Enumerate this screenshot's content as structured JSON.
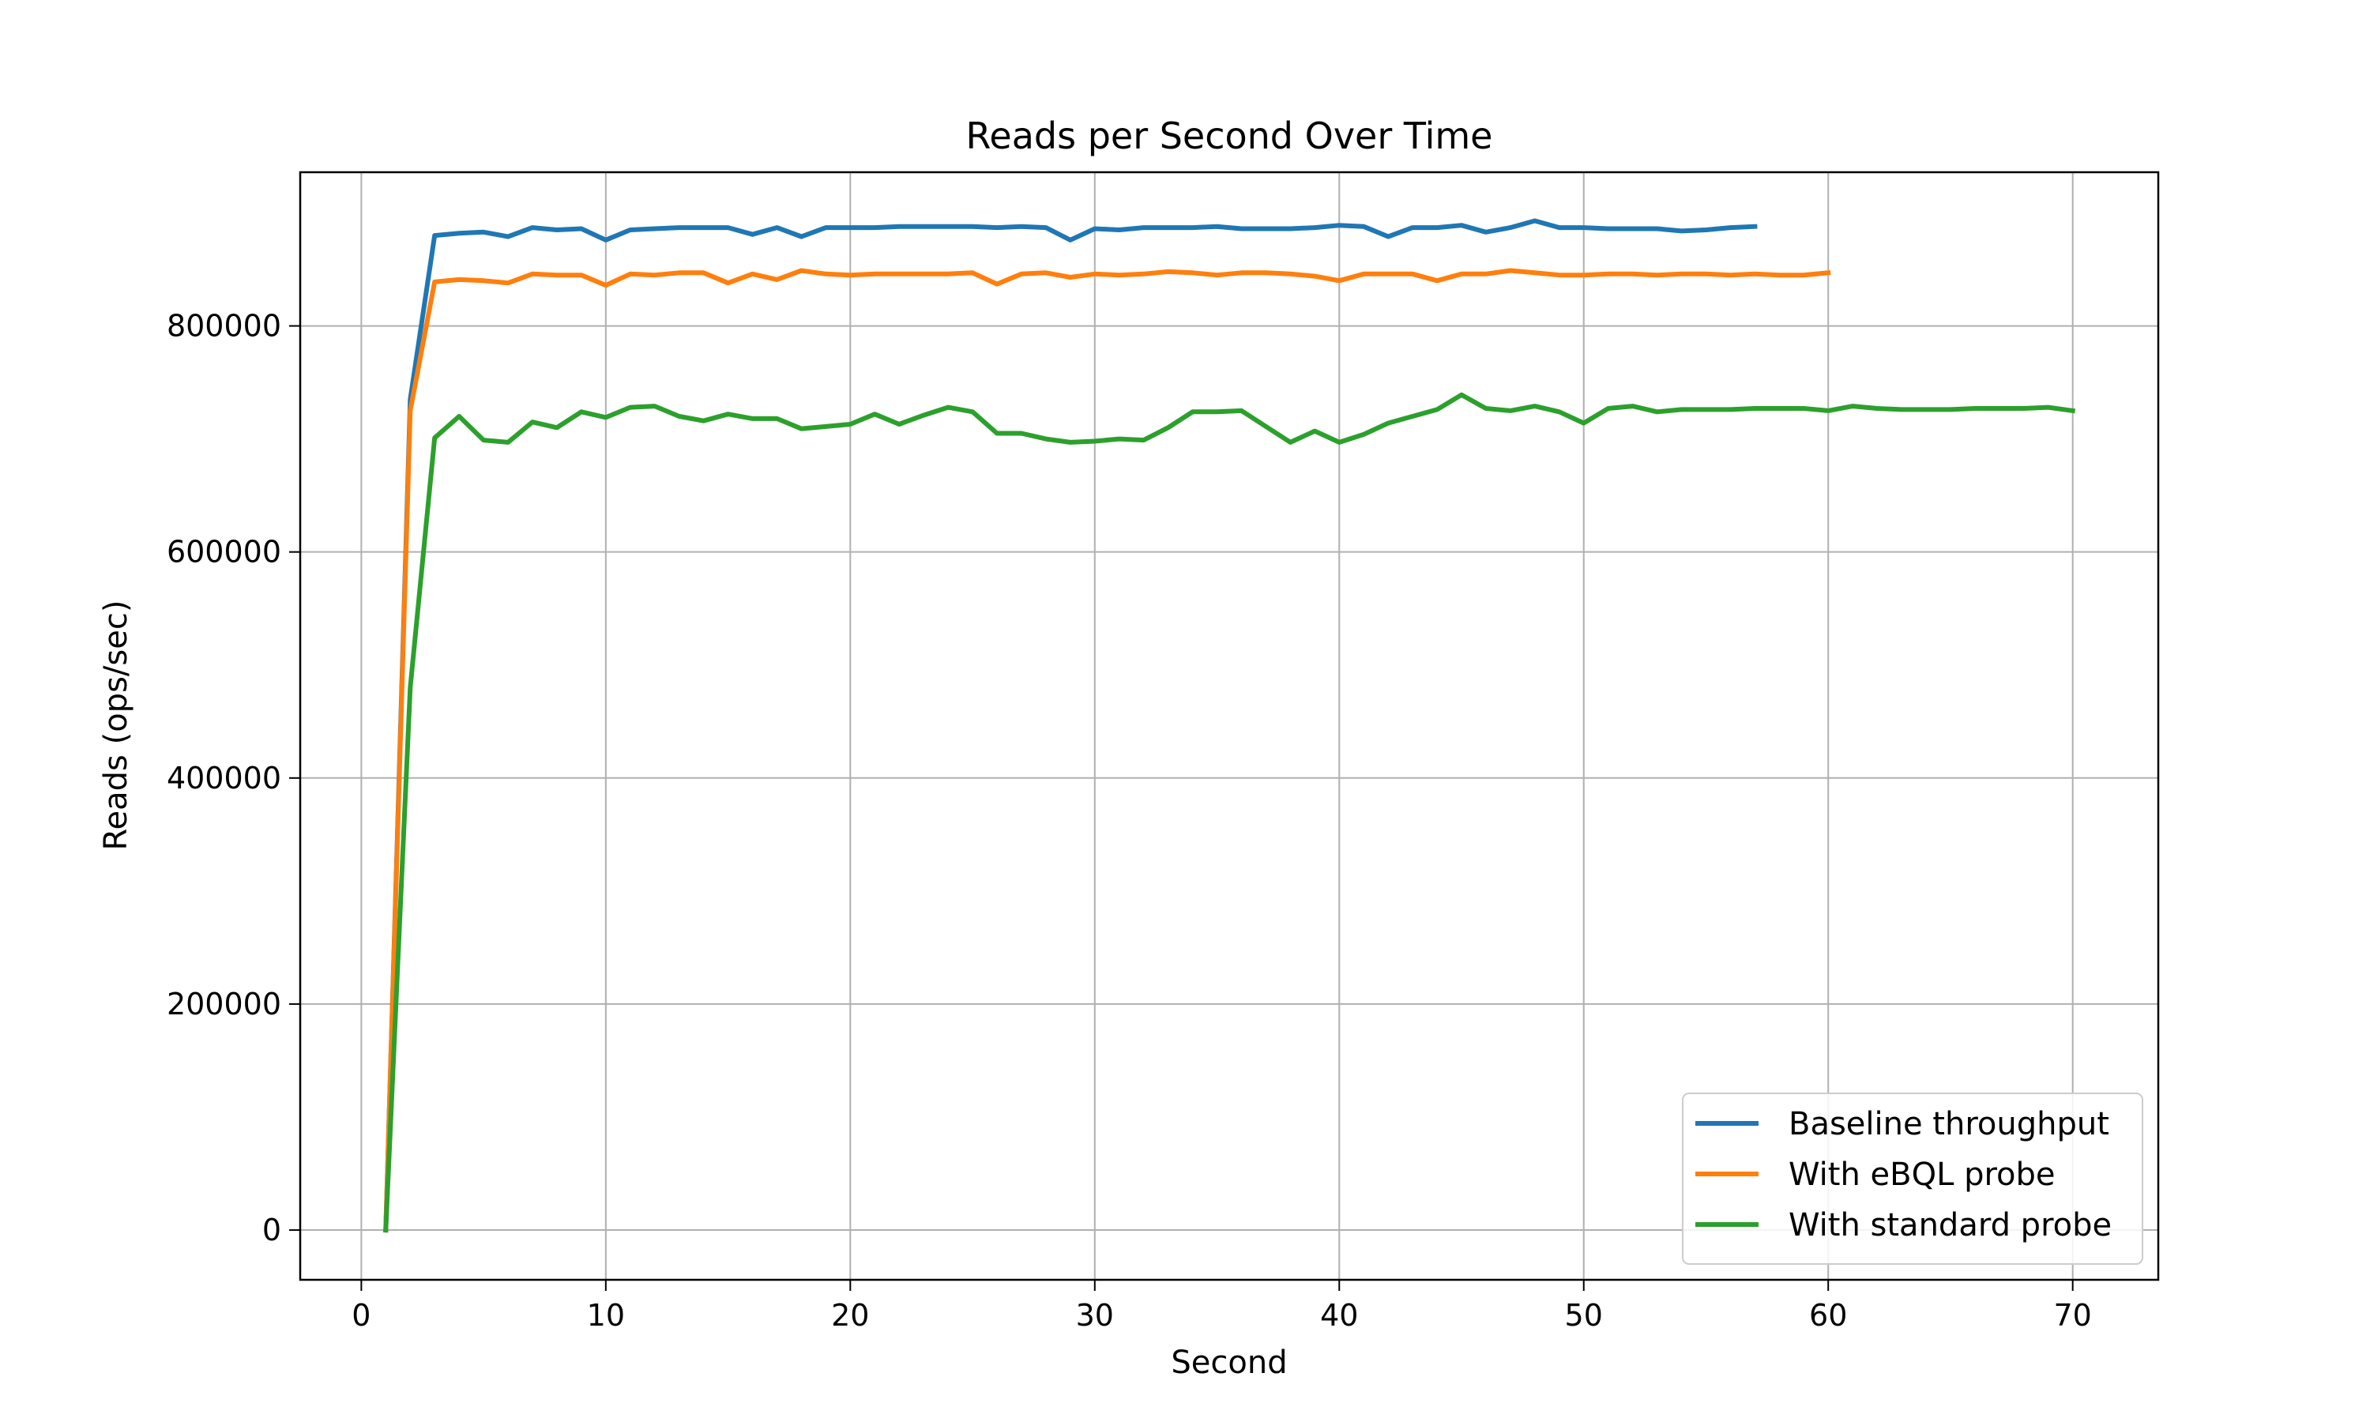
{
  "chart_data": {
    "type": "line",
    "title": "Reads per Second Over Time",
    "xlabel": "Second",
    "ylabel": "Reads (ops/sec)",
    "xlim": [
      -2.5,
      73.5
    ],
    "ylim": [
      -44000,
      936000
    ],
    "xticks": [
      0,
      10,
      20,
      30,
      40,
      50,
      60,
      70
    ],
    "yticks": [
      0,
      200000,
      400000,
      600000,
      800000
    ],
    "grid": true,
    "legend_position": "lower-right",
    "series": [
      {
        "name": "Baseline throughput",
        "color": "#1f77b4",
        "x": [
          1,
          2,
          3,
          4,
          5,
          6,
          7,
          8,
          9,
          10,
          11,
          12,
          13,
          14,
          15,
          16,
          17,
          18,
          19,
          20,
          21,
          22,
          23,
          24,
          25,
          26,
          27,
          28,
          29,
          30,
          31,
          32,
          33,
          34,
          35,
          36,
          37,
          38,
          39,
          40,
          41,
          42,
          43,
          44,
          45,
          46,
          47,
          48,
          49,
          50,
          51,
          52,
          53,
          54,
          55,
          56,
          57
        ],
        "y": [
          0,
          735000,
          880000,
          882000,
          883000,
          879000,
          887000,
          885000,
          886000,
          876000,
          885000,
          886000,
          887000,
          887000,
          887000,
          881000,
          887000,
          879000,
          887000,
          887000,
          887000,
          888000,
          888000,
          888000,
          888000,
          887000,
          888000,
          887000,
          876000,
          886000,
          885000,
          887000,
          887000,
          887000,
          888000,
          886000,
          886000,
          886000,
          887000,
          889000,
          888000,
          879000,
          887000,
          887000,
          889000,
          883000,
          887000,
          893000,
          887000,
          887000,
          886000,
          886000,
          886000,
          884000,
          885000,
          887000,
          888000
        ]
      },
      {
        "name": "With eBQL probe",
        "color": "#ff7f0e",
        "x": [
          1,
          2,
          3,
          4,
          5,
          6,
          7,
          8,
          9,
          10,
          11,
          12,
          13,
          14,
          15,
          16,
          17,
          18,
          19,
          20,
          21,
          22,
          23,
          24,
          25,
          26,
          27,
          28,
          29,
          30,
          31,
          32,
          33,
          34,
          35,
          36,
          37,
          38,
          39,
          40,
          41,
          42,
          43,
          44,
          45,
          46,
          47,
          48,
          49,
          50,
          51,
          52,
          53,
          54,
          55,
          56,
          57,
          58,
          59,
          60
        ],
        "y": [
          0,
          725000,
          839000,
          841000,
          840000,
          838000,
          846000,
          845000,
          845000,
          836000,
          846000,
          845000,
          847000,
          847000,
          838000,
          846000,
          841000,
          849000,
          846000,
          845000,
          846000,
          846000,
          846000,
          846000,
          847000,
          837000,
          846000,
          847000,
          843000,
          846000,
          845000,
          846000,
          848000,
          847000,
          845000,
          847000,
          847000,
          846000,
          844000,
          840000,
          846000,
          846000,
          846000,
          840000,
          846000,
          846000,
          849000,
          847000,
          845000,
          845000,
          846000,
          846000,
          845000,
          846000,
          846000,
          845000,
          846000,
          845000,
          845000,
          847000
        ]
      },
      {
        "name": "With standard probe",
        "color": "#2ca02c",
        "x": [
          1,
          2,
          3,
          4,
          5,
          6,
          7,
          8,
          9,
          10,
          11,
          12,
          13,
          14,
          15,
          16,
          17,
          18,
          19,
          20,
          21,
          22,
          23,
          24,
          25,
          26,
          27,
          28,
          29,
          30,
          31,
          32,
          33,
          34,
          35,
          36,
          37,
          38,
          39,
          40,
          41,
          42,
          43,
          44,
          45,
          46,
          47,
          48,
          49,
          50,
          51,
          52,
          53,
          54,
          55,
          56,
          57,
          58,
          59,
          60,
          61,
          62,
          63,
          64,
          65,
          66,
          67,
          68,
          69,
          70
        ],
        "y": [
          0,
          480000,
          701000,
          720000,
          699000,
          697000,
          715000,
          710000,
          724000,
          719000,
          728000,
          729000,
          720000,
          716000,
          722000,
          718000,
          718000,
          709000,
          711000,
          713000,
          722000,
          713000,
          721000,
          728000,
          724000,
          705000,
          705000,
          700000,
          697000,
          698000,
          700000,
          699000,
          710000,
          724000,
          724000,
          725000,
          711000,
          697000,
          707000,
          697000,
          704000,
          714000,
          720000,
          726000,
          739000,
          727000,
          725000,
          729000,
          724000,
          714000,
          727000,
          729000,
          724000,
          726000,
          726000,
          726000,
          727000,
          727000,
          727000,
          725000,
          729000,
          727000,
          726000,
          726000,
          726000,
          727000,
          727000,
          727000,
          728000,
          725000
        ]
      }
    ]
  }
}
